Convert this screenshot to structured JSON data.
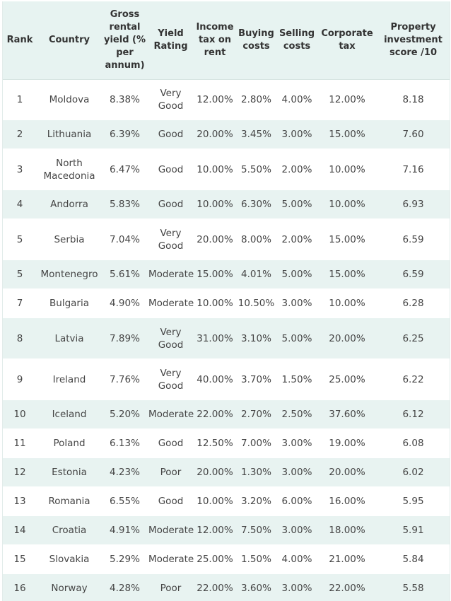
{
  "table": {
    "headers": [
      "Rank",
      "Country",
      "Gross rental yield (% per annum)",
      "Yield Rating",
      "Income tax on rent",
      "Buying costs",
      "Selling costs",
      "Corporate tax",
      "Property investment score /10"
    ],
    "rows": [
      [
        "1",
        "Moldova",
        "8.38%",
        "Very Good",
        "12.00%",
        "2.80%",
        "4.00%",
        "12.00%",
        "8.18"
      ],
      [
        "2",
        "Lithuania",
        "6.39%",
        "Good",
        "20.00%",
        "3.45%",
        "3.00%",
        "15.00%",
        "7.60"
      ],
      [
        "3",
        "North Macedonia",
        "6.47%",
        "Good",
        "10.00%",
        "5.50%",
        "2.00%",
        "10.00%",
        "7.16"
      ],
      [
        "4",
        "Andorra",
        "5.83%",
        "Good",
        "10.00%",
        "6.30%",
        "5.00%",
        "10.00%",
        "6.93"
      ],
      [
        "5",
        "Serbia",
        "7.04%",
        "Very Good",
        "20.00%",
        "8.00%",
        "2.00%",
        "15.00%",
        "6.59"
      ],
      [
        "5",
        "Montenegro",
        "5.61%",
        "Moderate",
        "15.00%",
        "4.01%",
        "5.00%",
        "15.00%",
        "6.59"
      ],
      [
        "7",
        "Bulgaria",
        "4.90%",
        "Moderate",
        "10.00%",
        "10.50%",
        "3.00%",
        "10.00%",
        "6.28"
      ],
      [
        "8",
        "Latvia",
        "7.89%",
        "Very Good",
        "31.00%",
        "3.10%",
        "5.00%",
        "20.00%",
        "6.25"
      ],
      [
        "9",
        "Ireland",
        "7.76%",
        "Very Good",
        "40.00%",
        "3.70%",
        "1.50%",
        "25.00%",
        "6.22"
      ],
      [
        "10",
        "Iceland",
        "5.20%",
        "Moderate",
        "22.00%",
        "2.70%",
        "2.50%",
        "37.60%",
        "6.12"
      ],
      [
        "11",
        "Poland",
        "6.13%",
        "Good",
        "12.50%",
        "7.00%",
        "3.00%",
        "19.00%",
        "6.08"
      ],
      [
        "12",
        "Estonia",
        "4.23%",
        "Poor",
        "20.00%",
        "1.30%",
        "3.00%",
        "20.00%",
        "6.02"
      ],
      [
        "13",
        "Romania",
        "6.55%",
        "Good",
        "10.00%",
        "3.20%",
        "6.00%",
        "16.00%",
        "5.95"
      ],
      [
        "14",
        "Croatia",
        "4.91%",
        "Moderate",
        "12.00%",
        "7.50%",
        "3.00%",
        "18.00%",
        "5.91"
      ],
      [
        "15",
        "Slovakia",
        "5.29%",
        "Moderate",
        "25.00%",
        "1.50%",
        "4.00%",
        "21.00%",
        "5.84"
      ],
      [
        "16",
        "Norway",
        "4.28%",
        "Poor",
        "22.00%",
        "3.60%",
        "3.00%",
        "22.00%",
        "5.58"
      ]
    ]
  }
}
